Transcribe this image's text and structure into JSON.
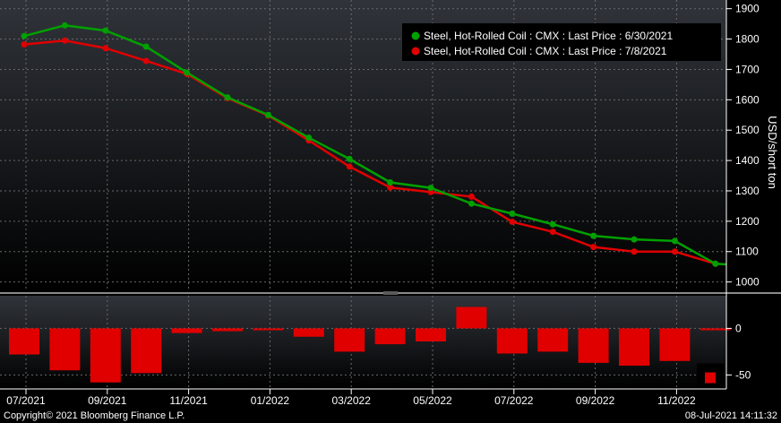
{
  "chart_data": [
    {
      "type": "line",
      "x": [
        "2021-07",
        "2021-08",
        "2021-09",
        "2021-10",
        "2021-11",
        "2021-12",
        "2022-01",
        "2022-02",
        "2022-03",
        "2022-04",
        "2022-05",
        "2022-06",
        "2022-07",
        "2022-08",
        "2022-09",
        "2022-10",
        "2022-11",
        "2022-12"
      ],
      "series": [
        {
          "name": "Steel, Hot-Rolled Coil : CMX : Last Price : 6/30/2021",
          "color": "#00a000",
          "values": [
            1810,
            1845,
            1828,
            1775,
            1690,
            1608,
            1550,
            1475,
            1405,
            1328,
            1310,
            1258,
            1225,
            1190,
            1152,
            1140,
            1135,
            1060
          ]
        },
        {
          "name": "Steel, Hot-Rolled Coil : CMX : Last Price : 7/8/2021",
          "color": "#e00000",
          "values": [
            1782,
            1795,
            1770,
            1728,
            1685,
            1605,
            1548,
            1466,
            1380,
            1311,
            1296,
            1281,
            1198,
            1165,
            1115,
            1100,
            1100,
            1060
          ]
        }
      ],
      "ylabel": "USD/short ton",
      "ylim": [
        990,
        1905
      ],
      "yticks": [
        "1900",
        "1800",
        "1700",
        "1600",
        "1500",
        "1400",
        "1300",
        "1200",
        "1100",
        "1000"
      ],
      "ytick_values": [
        1900,
        1800,
        1700,
        1600,
        1500,
        1400,
        1300,
        1200,
        1100,
        1000
      ],
      "grid": true,
      "legend_position": "top-right"
    },
    {
      "type": "bar",
      "x": [
        "2021-07",
        "2021-08",
        "2021-09",
        "2021-10",
        "2021-11",
        "2021-12",
        "2022-01",
        "2022-02",
        "2022-03",
        "2022-04",
        "2022-05",
        "2022-06",
        "2022-07",
        "2022-08",
        "2022-09",
        "2022-10",
        "2022-11",
        "2022-12"
      ],
      "values": [
        -28,
        -45,
        -58,
        -48,
        -5,
        -3,
        -2,
        -9,
        -25,
        -17,
        -14,
        23,
        -27,
        -25,
        -37,
        -40,
        -35,
        -2
      ],
      "extra_marker": {
        "value": -53,
        "color": "#e00000"
      },
      "ylim": [
        -65,
        35
      ],
      "yticks": [
        "0",
        "-50"
      ],
      "ytick_values": [
        0,
        -50
      ],
      "color": "#e00000"
    }
  ],
  "xaxis": {
    "labels": [
      "07/2021",
      "09/2021",
      "11/2021",
      "01/2022",
      "03/2022",
      "05/2022",
      "07/2022",
      "09/2022",
      "11/2022"
    ]
  },
  "footer": {
    "copyright": "Copyright© 2021 Bloomberg Finance L.P.",
    "timestamp": "08-Jul-2021 14:11:32"
  }
}
